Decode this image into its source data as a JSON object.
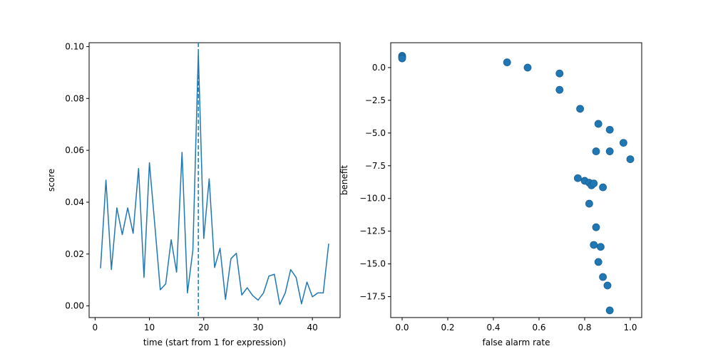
{
  "chart_data": [
    {
      "type": "line",
      "xlabel": "time (start from 1 for expression)",
      "ylabel": "score",
      "xlim": [
        -1.1,
        45.1
      ],
      "ylim": [
        -0.0045,
        0.1015
      ],
      "xticks": [
        0,
        10,
        20,
        30,
        40
      ],
      "yticks": [
        0.0,
        0.02,
        0.04,
        0.06,
        0.08,
        0.1
      ],
      "xtick_labels": [
        "0",
        "10",
        "20",
        "30",
        "40"
      ],
      "ytick_labels": [
        "0.00",
        "0.02",
        "0.04",
        "0.06",
        "0.08",
        "0.10"
      ],
      "color": "#1f77b4",
      "x": [
        1,
        2,
        3,
        4,
        5,
        6,
        7,
        8,
        9,
        10,
        11,
        12,
        13,
        14,
        15,
        16,
        17,
        18,
        19,
        20,
        21,
        22,
        23,
        24,
        25,
        26,
        27,
        28,
        29,
        30,
        31,
        32,
        33,
        34,
        35,
        36,
        37,
        38,
        39,
        40,
        41,
        42,
        43
      ],
      "y": [
        0.0145,
        0.0485,
        0.014,
        0.0378,
        0.0275,
        0.0378,
        0.028,
        0.053,
        0.011,
        0.0552,
        0.031,
        0.0062,
        0.0085,
        0.0255,
        0.013,
        0.0592,
        0.005,
        0.0215,
        0.0975,
        0.026,
        0.049,
        0.0148,
        0.0222,
        0.0025,
        0.0182,
        0.0203,
        0.0042,
        0.007,
        0.004,
        0.0022,
        0.005,
        0.0115,
        0.0122,
        0.0005,
        0.005,
        0.014,
        0.011,
        0.0008,
        0.0092,
        0.0035,
        0.005,
        0.005,
        0.024
      ],
      "vline": {
        "x": 19,
        "style": "dashed"
      }
    },
    {
      "type": "scatter",
      "xlabel": "false alarm rate",
      "ylabel": "benefit",
      "xlim": [
        -0.05,
        1.05
      ],
      "ylim": [
        -19.1,
        1.9
      ],
      "xticks": [
        0.0,
        0.2,
        0.4,
        0.6,
        0.8,
        1.0
      ],
      "yticks": [
        0.0,
        -2.5,
        -5.0,
        -7.5,
        -10.0,
        -12.5,
        -15.0,
        -17.5
      ],
      "xtick_labels": [
        "0.0",
        "0.2",
        "0.4",
        "0.6",
        "0.8",
        "1.0"
      ],
      "ytick_labels": [
        "0.0",
        "−2.5",
        "−5.0",
        "−7.5",
        "−10.0",
        "−12.5",
        "−15.0",
        "−17.5"
      ],
      "color": "#1f77b4",
      "points": [
        [
          0.0,
          0.9
        ],
        [
          0.0,
          0.8
        ],
        [
          0.0,
          0.7
        ],
        [
          0.46,
          0.4
        ],
        [
          0.55,
          0.0
        ],
        [
          0.69,
          -0.45
        ],
        [
          0.69,
          -1.7
        ],
        [
          0.78,
          -3.15
        ],
        [
          0.86,
          -4.3
        ],
        [
          0.91,
          -4.75
        ],
        [
          0.97,
          -5.75
        ],
        [
          0.85,
          -6.4
        ],
        [
          0.91,
          -6.4
        ],
        [
          1.0,
          -7.0
        ],
        [
          0.77,
          -8.45
        ],
        [
          0.8,
          -8.65
        ],
        [
          0.82,
          -8.8
        ],
        [
          0.83,
          -9.0
        ],
        [
          0.84,
          -8.85
        ],
        [
          0.88,
          -9.15
        ],
        [
          0.82,
          -10.4
        ],
        [
          0.85,
          -12.2
        ],
        [
          0.84,
          -13.55
        ],
        [
          0.87,
          -13.7
        ],
        [
          0.86,
          -14.85
        ],
        [
          0.88,
          -16.0
        ],
        [
          0.9,
          -16.65
        ],
        [
          0.91,
          -18.55
        ]
      ]
    }
  ]
}
